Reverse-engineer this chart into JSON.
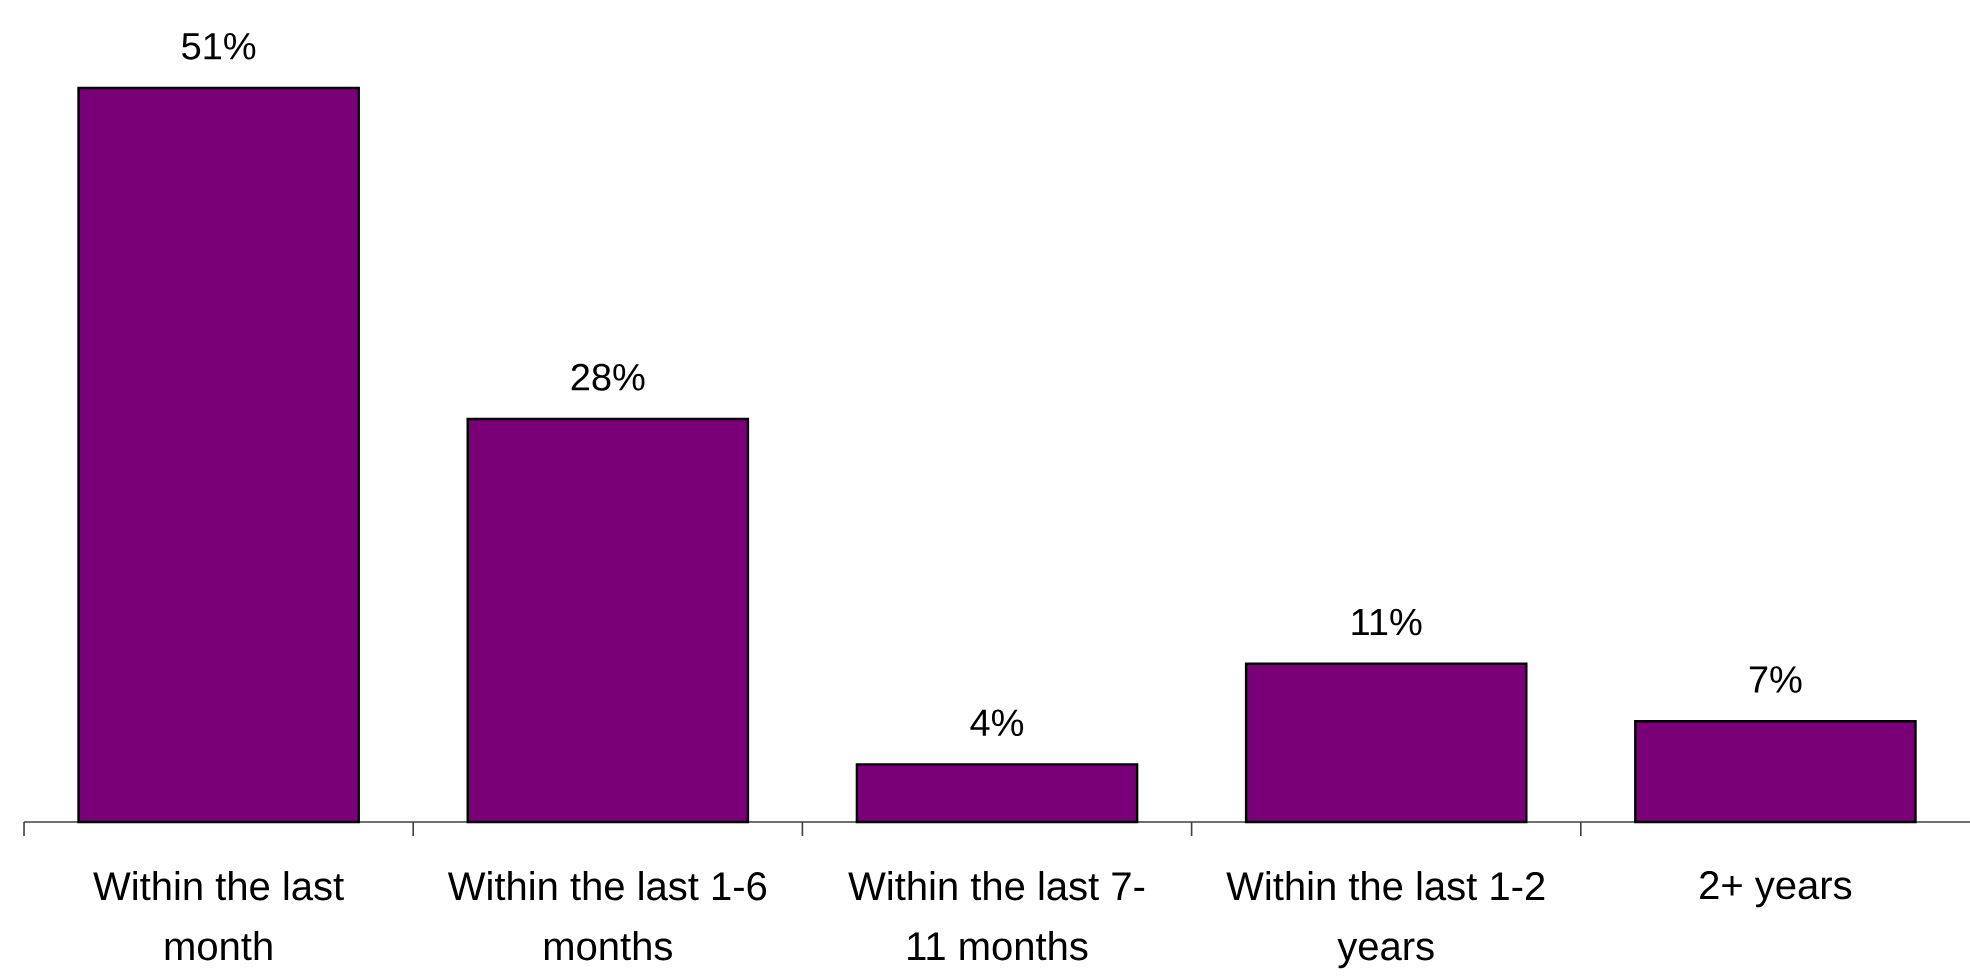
{
  "chart_data": {
    "type": "bar",
    "categories": [
      "Within the last month",
      "Within the last 1-6 months",
      "Within the last 7-11 months",
      "Within the last 1-2 years",
      "2+ years"
    ],
    "values": [
      51,
      28,
      4,
      11,
      7
    ],
    "value_labels": [
      "51%",
      "28%",
      "4%",
      "11%",
      "7%"
    ],
    "color": "#7a0078"
  }
}
